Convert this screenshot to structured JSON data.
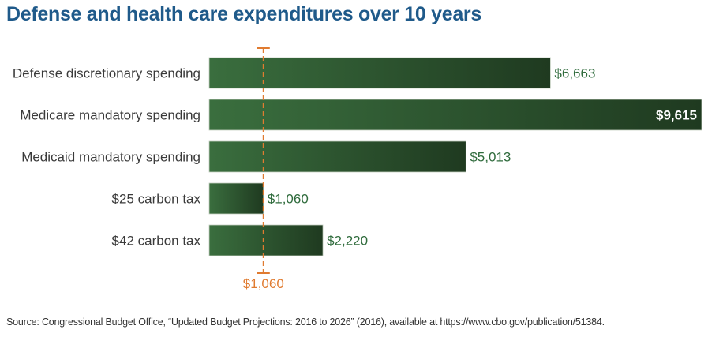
{
  "chart_data": {
    "type": "bar",
    "orientation": "horizontal",
    "title": "Defense and health care expenditures over 10 years",
    "categories": [
      "Defense discretionary spending",
      "Medicare mandatory spending",
      "Medicaid mandatory spending",
      "$25 carbon tax",
      "$42 carbon tax"
    ],
    "values": [
      6663,
      9615,
      5013,
      1060,
      2220
    ],
    "value_labels": [
      "$6,663",
      "$9,615",
      "$5,013",
      "$1,060",
      "$2,220"
    ],
    "xlim": [
      0,
      9615
    ],
    "xlabel": "",
    "ylabel": "",
    "grid": false,
    "reference_line": {
      "value": 1060,
      "label": "$1,060",
      "style": "dashed"
    },
    "colors": {
      "bar_start": "#3a6e3e",
      "bar_end": "#1f3a20",
      "value_label": "#2f6b3c",
      "value_label_inside": "#ffffff",
      "reference": "#e07b30",
      "category_label": "#3a3a3a",
      "title": "#1f5a8a"
    }
  },
  "source": "Source: Congressional Budget Office, “Updated Budget Projections: 2016 to 2026” (2016), available at https://www.cbo.gov/publication/51384."
}
